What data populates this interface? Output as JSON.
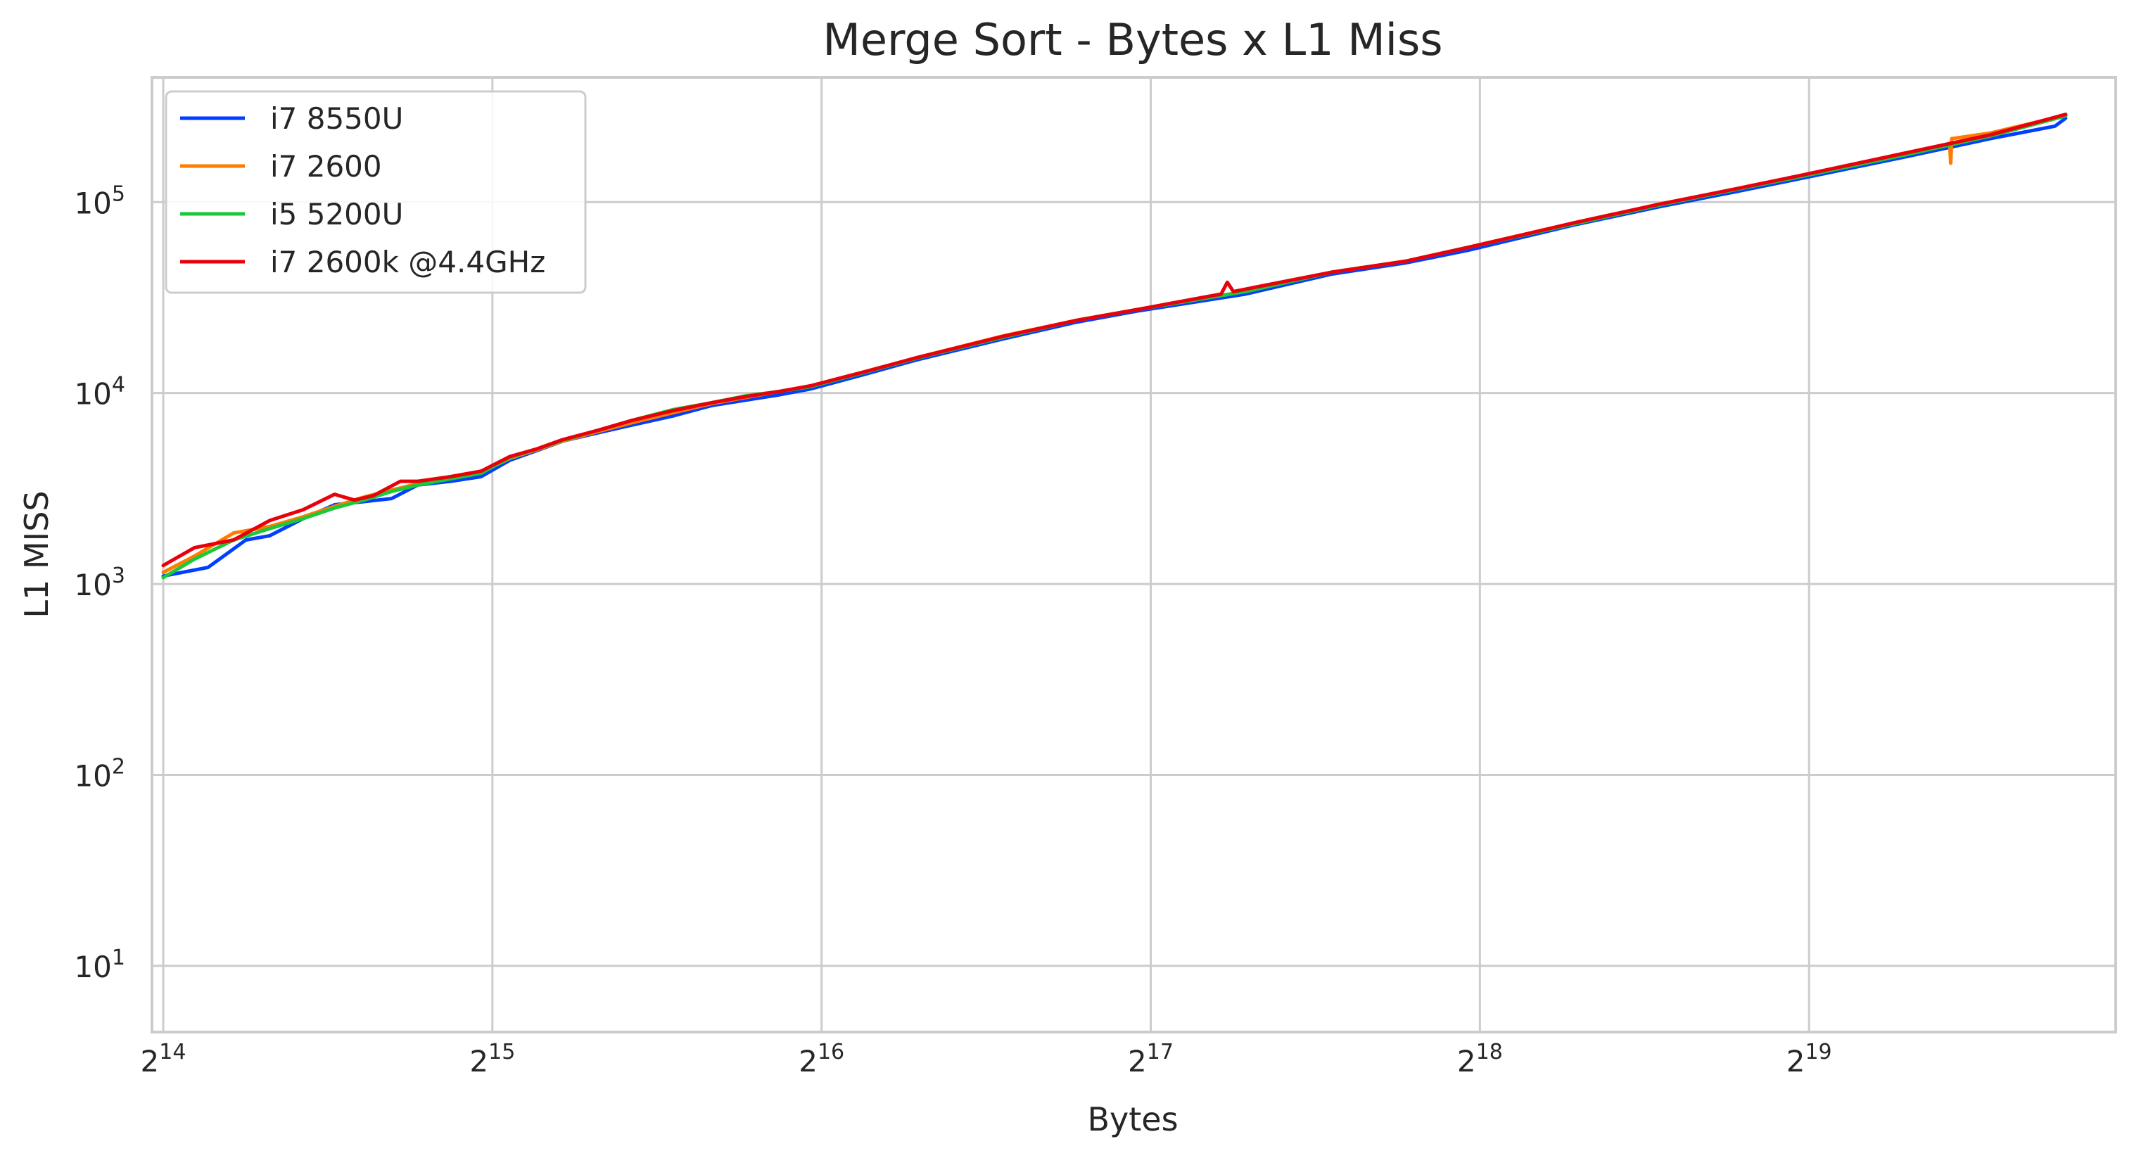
{
  "chart_data": {
    "type": "line",
    "title": "Merge Sort - Bytes x L1 Miss",
    "xlabel": "Bytes",
    "ylabel": "L1 MISS",
    "xscale": "log2",
    "yscale": "log10",
    "xlim": [
      16000,
      1000000
    ],
    "ylim": [
      4.5,
      450000
    ],
    "grid": true,
    "legend_position": "top-left",
    "x_ticks": [
      {
        "value": 16384,
        "base": "2",
        "exp": "14"
      },
      {
        "value": 32768,
        "base": "2",
        "exp": "15"
      },
      {
        "value": 65536,
        "base": "2",
        "exp": "16"
      },
      {
        "value": 131072,
        "base": "2",
        "exp": "17"
      },
      {
        "value": 262144,
        "base": "2",
        "exp": "18"
      },
      {
        "value": 524288,
        "base": "2",
        "exp": "19"
      }
    ],
    "y_ticks": [
      {
        "value": 10,
        "base": "10",
        "exp": "1"
      },
      {
        "value": 100,
        "base": "10",
        "exp": "2"
      },
      {
        "value": 1000,
        "base": "10",
        "exp": "3"
      },
      {
        "value": 10000,
        "base": "10",
        "exp": "4"
      },
      {
        "value": 100000,
        "base": "10",
        "exp": "5"
      }
    ],
    "series": [
      {
        "name": "i7 8550U",
        "color": "#023eff",
        "x": [
          16384,
          18000,
          19500,
          20500,
          22000,
          23500,
          25000,
          26500,
          28000,
          30000,
          32000,
          34000,
          36000,
          38000,
          41000,
          44000,
          48000,
          52000,
          56000,
          60000,
          64000,
          72000,
          80000,
          96000,
          112000,
          128000,
          160000,
          192000,
          224000,
          256000,
          320000,
          384000,
          448000,
          512000,
          640000,
          768000,
          880000,
          900000
        ],
        "y": [
          1100,
          1220,
          1700,
          1790,
          2200,
          2600,
          2700,
          2800,
          3300,
          3450,
          3650,
          4450,
          5000,
          5600,
          6200,
          6800,
          7600,
          8600,
          9200,
          9800,
          10500,
          12600,
          14900,
          19200,
          23500,
          27000,
          33000,
          42000,
          48000,
          56000,
          76000,
          95000,
          113000,
          132000,
          172000,
          215000,
          250000,
          275000
        ]
      },
      {
        "name": "i7 2600",
        "color": "#ff7c00",
        "x": [
          16384,
          17500,
          19000,
          20500,
          22000,
          23500,
          25000,
          26500,
          28000,
          30000,
          32000,
          34000,
          36000,
          38000,
          41000,
          44000,
          48000,
          52000,
          56000,
          60000,
          64000,
          72000,
          80000,
          96000,
          112000,
          128000,
          160000,
          192000,
          224000,
          256000,
          320000,
          384000,
          448000,
          512000,
          640000,
          705000,
          706500,
          708000,
          768000,
          900000
        ],
        "y": [
          1150,
          1400,
          1850,
          2000,
          2250,
          2550,
          2850,
          3100,
          3350,
          3600,
          3850,
          4550,
          5050,
          5600,
          6300,
          7000,
          7900,
          8800,
          9500,
          10200,
          10900,
          13000,
          15300,
          19900,
          24000,
          27500,
          34000,
          43000,
          49000,
          58000,
          78000,
          98000,
          116000,
          136000,
          178000,
          200000,
          160000,
          215000,
          230000,
          285000
        ]
      },
      {
        "name": "i5 5200U",
        "color": "#1ac938",
        "x": [
          16384,
          17500,
          19000,
          20500,
          22000,
          23500,
          25000,
          26500,
          28000,
          30000,
          32000,
          34000,
          36000,
          38000,
          41000,
          44000,
          48000,
          52000,
          56000,
          60000,
          64000,
          72000,
          80000,
          96000,
          112000,
          128000,
          160000,
          192000,
          224000,
          256000,
          320000,
          384000,
          448000,
          512000,
          640000,
          768000,
          900000
        ],
        "y": [
          1080,
          1350,
          1700,
          1950,
          2200,
          2500,
          2750,
          3050,
          3300,
          3550,
          3800,
          4600,
          5100,
          5650,
          6400,
          7200,
          8200,
          8900,
          9700,
          10200,
          10800,
          12900,
          15200,
          19600,
          24000,
          27500,
          34000,
          43000,
          49000,
          58000,
          77000,
          97000,
          116000,
          135000,
          176000,
          222000,
          283000
        ]
      },
      {
        "name": "i7 2600k @4.4GHz",
        "color": "#e8000b",
        "x": [
          16384,
          17500,
          19000,
          20500,
          22000,
          23500,
          24500,
          25500,
          27000,
          28000,
          30000,
          32000,
          34000,
          36000,
          38000,
          41000,
          44000,
          48000,
          52000,
          56000,
          60000,
          64000,
          72000,
          80000,
          96000,
          112000,
          128000,
          152000,
          154000,
          156000,
          192000,
          224000,
          256000,
          320000,
          384000,
          448000,
          512000,
          640000,
          768000,
          900000
        ],
        "y": [
          1250,
          1550,
          1700,
          2150,
          2450,
          2950,
          2750,
          2900,
          3450,
          3450,
          3650,
          3900,
          4650,
          5100,
          5700,
          6400,
          7200,
          8100,
          8900,
          9600,
          10200,
          10900,
          13000,
          15300,
          19800,
          24000,
          27500,
          33000,
          38000,
          34000,
          43000,
          49000,
          58000,
          78000,
          98000,
          117000,
          137000,
          180000,
          225000,
          288000
        ]
      }
    ]
  }
}
